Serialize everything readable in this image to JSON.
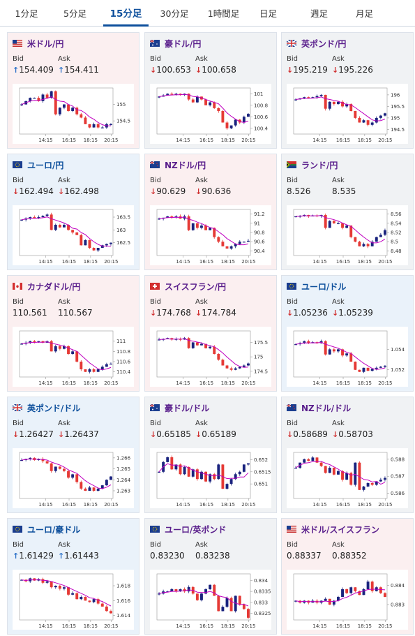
{
  "tabs": [
    {
      "label": "1分足",
      "active": false
    },
    {
      "label": "5分足",
      "active": false
    },
    {
      "label": "15分足",
      "active": true
    },
    {
      "label": "30分足",
      "active": false
    },
    {
      "label": "1時間足",
      "active": false
    },
    {
      "label": "日足",
      "active": false
    },
    {
      "label": "週足",
      "active": false
    },
    {
      "label": "月足",
      "active": false
    }
  ],
  "labels": {
    "bid": "Bid",
    "ask": "Ask"
  },
  "colors": {
    "up_candle": "#1a237e",
    "down_candle": "#e53935",
    "ma_line": "#c000c0",
    "ma2_line": "#1e88e5",
    "arrow_up": "#2a70c8",
    "arrow_down": "#d03030"
  },
  "cards": [
    {
      "pair": "米ドル/円",
      "flag": "us-jp",
      "dir": "down",
      "bid": "154.409",
      "ask": "154.411",
      "bid_arrow": "up",
      "ask_arrow": "up",
      "chart": {
        "x_ticks": [
          "14:15",
          "16:15",
          "18:15",
          "20:15"
        ],
        "y_ticks": [
          "155",
          "154.5"
        ],
        "ylim": [
          154.1,
          155.5
        ],
        "close": [
          155.0,
          155.1,
          155.2,
          155.2,
          155.1,
          155.3,
          155.2,
          155.4,
          154.7,
          154.9,
          155.0,
          154.8,
          154.9,
          154.7,
          154.6,
          154.4,
          154.3,
          154.4,
          154.3,
          154.3,
          154.4,
          154.4
        ]
      }
    },
    {
      "pair": "豪ドル/円",
      "flag": "au-jp",
      "dir": "flat",
      "bid": "100.653",
      "ask": "100.658",
      "bid_arrow": "down",
      "ask_arrow": "down",
      "chart": {
        "x_ticks": [
          "14:15",
          "16:15",
          "18:15",
          "20:15"
        ],
        "y_ticks": [
          "101",
          "100.8",
          "100.6",
          "100.4"
        ],
        "ylim": [
          100.3,
          101.1
        ],
        "close": [
          100.95,
          100.97,
          101.0,
          100.99,
          101.0,
          100.98,
          101.0,
          100.9,
          100.85,
          100.95,
          100.9,
          100.8,
          100.85,
          100.75,
          100.7,
          100.5,
          100.4,
          100.45,
          100.55,
          100.5,
          100.6,
          100.65
        ]
      }
    },
    {
      "pair": "英ポンド/円",
      "flag": "gb-jp",
      "dir": "flat",
      "bid": "195.219",
      "ask": "195.226",
      "bid_arrow": "down",
      "ask_arrow": "down",
      "chart": {
        "x_ticks": [
          "14:15",
          "16:15",
          "18:15",
          "20:15"
        ],
        "y_ticks": [
          "196",
          "195.5",
          "195",
          "194.5"
        ],
        "ylim": [
          194.3,
          196.3
        ],
        "close": [
          195.8,
          195.85,
          195.9,
          195.85,
          195.9,
          195.95,
          196.0,
          195.4,
          195.7,
          195.6,
          195.7,
          195.5,
          195.6,
          195.3,
          195.0,
          194.8,
          194.9,
          194.7,
          194.8,
          195.0,
          195.1,
          195.2
        ]
      }
    },
    {
      "pair": "ユーロ/円",
      "flag": "eu-jp",
      "dir": "up",
      "bid": "162.494",
      "ask": "162.498",
      "bid_arrow": "down",
      "ask_arrow": "down",
      "chart": {
        "x_ticks": [
          "14:15",
          "16:15",
          "18:15",
          "20:15"
        ],
        "y_ticks": [
          "163.5",
          "163",
          "162.5"
        ],
        "ylim": [
          162.0,
          163.8
        ],
        "close": [
          163.4,
          163.45,
          163.5,
          163.45,
          163.5,
          163.55,
          163.6,
          163.0,
          163.2,
          163.1,
          163.2,
          163.0,
          162.9,
          162.8,
          162.4,
          162.6,
          162.3,
          162.2,
          162.3,
          162.4,
          162.45,
          162.5
        ]
      }
    },
    {
      "pair": "NZドル/円",
      "flag": "nz-jp",
      "dir": "down",
      "bid": "90.629",
      "ask": "90.636",
      "bid_arrow": "down",
      "ask_arrow": "down",
      "chart": {
        "x_ticks": [
          "14:15",
          "16:15",
          "18:15",
          "20:15"
        ],
        "y_ticks": [
          "91.2",
          "91",
          "90.8",
          "90.6",
          "90.4"
        ],
        "ylim": [
          90.3,
          91.3
        ],
        "close": [
          91.1,
          91.12,
          91.15,
          91.13,
          91.15,
          91.1,
          91.15,
          90.85,
          91.0,
          90.9,
          90.95,
          90.85,
          90.9,
          90.7,
          90.6,
          90.5,
          90.45,
          90.5,
          90.55,
          90.6,
          90.6,
          90.62
        ]
      }
    },
    {
      "pair": "ランド/円",
      "flag": "za-jp",
      "dir": "flat",
      "bid": "8.526",
      "ask": "8.535",
      "bid_arrow": "",
      "ask_arrow": "",
      "chart": {
        "x_ticks": [
          "14:15",
          "16:15",
          "18:15",
          "20:15"
        ],
        "y_ticks": [
          "8.56",
          "8.54",
          "8.52",
          "8.5",
          "8.48"
        ],
        "ylim": [
          8.47,
          8.57
        ],
        "close": [
          8.555,
          8.556,
          8.558,
          8.555,
          8.557,
          8.556,
          8.558,
          8.53,
          8.545,
          8.54,
          8.54,
          8.53,
          8.535,
          8.51,
          8.5,
          8.49,
          8.495,
          8.49,
          8.5,
          8.51,
          8.515,
          8.525
        ]
      }
    },
    {
      "pair": "カナダドル/円",
      "flag": "ca-jp",
      "dir": "down",
      "bid": "110.561",
      "ask": "110.567",
      "bid_arrow": "",
      "ask_arrow": "",
      "chart": {
        "x_ticks": [
          "14:15",
          "16:15",
          "18:15",
          "20:15"
        ],
        "y_ticks": [
          "111",
          "110.8",
          "110.6",
          "110.4"
        ],
        "ylim": [
          110.3,
          111.2
        ],
        "close": [
          110.95,
          110.97,
          111.0,
          110.98,
          111.0,
          110.97,
          111.0,
          110.8,
          110.9,
          110.85,
          110.9,
          110.75,
          110.8,
          110.6,
          110.45,
          110.4,
          110.45,
          110.4,
          110.45,
          110.5,
          110.55,
          110.56
        ]
      }
    },
    {
      "pair": "スイスフラン/円",
      "flag": "ch-jp",
      "dir": "down",
      "bid": "174.768",
      "ask": "174.784",
      "bid_arrow": "down",
      "ask_arrow": "down",
      "chart": {
        "x_ticks": [
          "14:15",
          "16:15",
          "18:15",
          "20:15"
        ],
        "y_ticks": [
          "175.5",
          "175",
          "174.5"
        ],
        "ylim": [
          174.3,
          175.9
        ],
        "close": [
          175.6,
          175.62,
          175.65,
          175.6,
          175.62,
          175.6,
          175.65,
          175.3,
          175.5,
          175.4,
          175.45,
          175.3,
          175.35,
          175.1,
          174.9,
          174.7,
          174.6,
          174.55,
          174.6,
          174.65,
          174.7,
          174.77
        ]
      }
    },
    {
      "pair": "ユーロ/ドル",
      "flag": "eu-us",
      "dir": "up",
      "bid": "1.05236",
      "ask": "1.05239",
      "bid_arrow": "down",
      "ask_arrow": "down",
      "chart": {
        "x_ticks": [
          "14:15",
          "16:15",
          "18:15",
          "20:15"
        ],
        "y_ticks": [
          "1.054",
          "1.052"
        ],
        "ylim": [
          1.0513,
          1.0558
        ],
        "close": [
          1.0545,
          1.0546,
          1.0548,
          1.0546,
          1.0547,
          1.0546,
          1.0548,
          1.0535,
          1.054,
          1.0538,
          1.054,
          1.0534,
          1.0536,
          1.0528,
          1.052,
          1.0518,
          1.0522,
          1.0519,
          1.0521,
          1.0522,
          1.0523,
          1.0524
        ]
      }
    },
    {
      "pair": "英ポンド/ドル",
      "flag": "gb-us",
      "dir": "up",
      "bid": "1.26427",
      "ask": "1.26437",
      "bid_arrow": "down",
      "ask_arrow": "down",
      "chart": {
        "x_ticks": [
          "14:15",
          "16:15",
          "18:15",
          "20:15"
        ],
        "y_ticks": [
          "1.266",
          "1.265",
          "1.264",
          "1.263"
        ],
        "ylim": [
          1.2623,
          1.2665
        ],
        "close": [
          1.2658,
          1.2659,
          1.266,
          1.2658,
          1.2659,
          1.2657,
          1.2655,
          1.2648,
          1.2652,
          1.265,
          1.2648,
          1.2642,
          1.2645,
          1.2638,
          1.2632,
          1.263,
          1.2633,
          1.263,
          1.2632,
          1.2635,
          1.264,
          1.2643
        ]
      }
    },
    {
      "pair": "豪ドル/ドル",
      "flag": "au-us",
      "dir": "flat",
      "bid": "0.65185",
      "ask": "0.65189",
      "bid_arrow": "down",
      "ask_arrow": "down",
      "chart": {
        "x_ticks": [
          "14:15",
          "16:15",
          "18:15",
          "20:15"
        ],
        "y_ticks": [
          "0.652",
          "0.6515",
          "0.651"
        ],
        "ylim": [
          0.6504,
          0.6523
        ],
        "close": [
          0.6515,
          0.6519,
          0.6521,
          0.6516,
          0.6518,
          0.6514,
          0.6517,
          0.6513,
          0.6516,
          0.6512,
          0.6515,
          0.6511,
          0.6514,
          0.6512,
          0.6518,
          0.6508,
          0.651,
          0.6512,
          0.6514,
          0.6515,
          0.6518,
          0.65185
        ]
      }
    },
    {
      "pair": "NZドル/ドル",
      "flag": "nz-us",
      "dir": "flat",
      "bid": "0.58689",
      "ask": "0.58703",
      "bid_arrow": "down",
      "ask_arrow": "down",
      "chart": {
        "x_ticks": [
          "14:15",
          "16:15",
          "18:15",
          "20:15"
        ],
        "y_ticks": [
          "0.588",
          "0.587",
          "0.586"
        ],
        "ylim": [
          0.5857,
          0.5884
        ],
        "close": [
          0.5875,
          0.5878,
          0.588,
          0.5879,
          0.5881,
          0.5878,
          0.5876,
          0.5872,
          0.5875,
          0.5871,
          0.5873,
          0.5868,
          0.5872,
          0.5865,
          0.5878,
          0.5862,
          0.5864,
          0.5866,
          0.5865,
          0.5867,
          0.5868,
          0.5869
        ]
      }
    },
    {
      "pair": "ユーロ/豪ドル",
      "flag": "eu-au",
      "dir": "up",
      "bid": "1.61429",
      "ask": "1.61443",
      "bid_arrow": "up",
      "ask_arrow": "up",
      "chart": {
        "x_ticks": [
          "14:15",
          "16:15",
          "18:15",
          "20:15"
        ],
        "y_ticks": [
          "1.618",
          "1.616",
          "1.614"
        ],
        "ylim": [
          1.6134,
          1.6196
        ],
        "close": [
          1.6188,
          1.6186,
          1.619,
          1.6187,
          1.6189,
          1.6184,
          1.6186,
          1.6178,
          1.618,
          1.6176,
          1.6178,
          1.6168,
          1.617,
          1.6162,
          1.6165,
          1.616,
          1.6158,
          1.6162,
          1.6156,
          1.6152,
          1.6146,
          1.6143
        ]
      }
    },
    {
      "pair": "ユーロ/英ポンド",
      "flag": "eu-gb",
      "dir": "flat",
      "bid": "0.83230",
      "ask": "0.83238",
      "bid_arrow": "",
      "ask_arrow": "",
      "chart": {
        "x_ticks": [
          "14:15",
          "16:15",
          "18:15",
          "20:15"
        ],
        "y_ticks": [
          "0.834",
          "0.8335",
          "0.833",
          "0.8325"
        ],
        "ylim": [
          0.8322,
          0.8343
        ],
        "close": [
          0.8334,
          0.8335,
          0.8335,
          0.8336,
          0.8335,
          0.8336,
          0.8335,
          0.8337,
          0.8334,
          0.8331,
          0.8334,
          0.8336,
          0.8338,
          0.8333,
          0.8326,
          0.8328,
          0.8332,
          0.8326,
          0.8333,
          0.8329,
          0.8327,
          0.8323
        ]
      }
    },
    {
      "pair": "米ドル/スイスフラン",
      "flag": "us-ch",
      "dir": "down",
      "bid": "0.88337",
      "ask": "0.88352",
      "bid_arrow": "",
      "ask_arrow": "",
      "chart": {
        "x_ticks": [
          "14:15",
          "16:15",
          "18:15",
          "20:15"
        ],
        "y_ticks": [
          "0.884",
          "0.883"
        ],
        "ylim": [
          0.8822,
          0.8846
        ],
        "close": [
          0.8832,
          0.8831,
          0.8832,
          0.8831,
          0.8832,
          0.8831,
          0.8832,
          0.8833,
          0.883,
          0.8832,
          0.8834,
          0.8838,
          0.8836,
          0.8839,
          0.8837,
          0.8835,
          0.8838,
          0.8842,
          0.8837,
          0.8839,
          0.8836,
          0.8834
        ]
      }
    }
  ]
}
